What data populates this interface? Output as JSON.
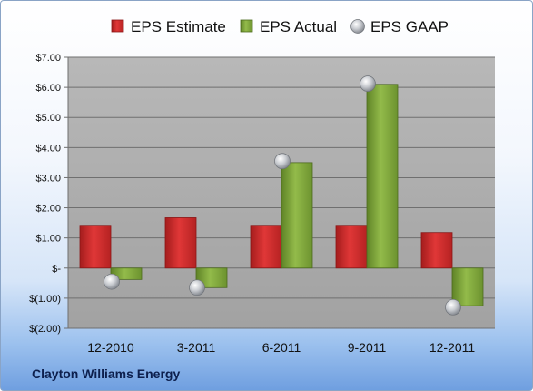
{
  "company": "Clayton Williams Energy",
  "chart_data": {
    "type": "bar",
    "categories": [
      "12-2010",
      "3-2011",
      "6-2011",
      "9-2011",
      "12-2011"
    ],
    "series": [
      {
        "name": "EPS Estimate",
        "type": "bar",
        "color": "#cc2a2a",
        "values": [
          1.42,
          1.67,
          1.42,
          1.42,
          1.18
        ]
      },
      {
        "name": "EPS Actual",
        "type": "bar",
        "color": "#7fa53a",
        "values": [
          -0.38,
          -0.65,
          3.5,
          6.1,
          -1.25
        ]
      },
      {
        "name": "EPS GAAP",
        "type": "scatter",
        "color": "#b8bcc2",
        "values": [
          -0.45,
          -0.65,
          3.55,
          6.12,
          -1.3
        ]
      }
    ],
    "y_ticks": [
      "$7.00",
      "$6.00",
      "$5.00",
      "$4.00",
      "$3.00",
      "$2.00",
      "$1.00",
      "$-",
      "$(1.00)",
      "$(2.00)"
    ],
    "ylim": [
      -2,
      7
    ],
    "grid": true,
    "legend": "top"
  }
}
